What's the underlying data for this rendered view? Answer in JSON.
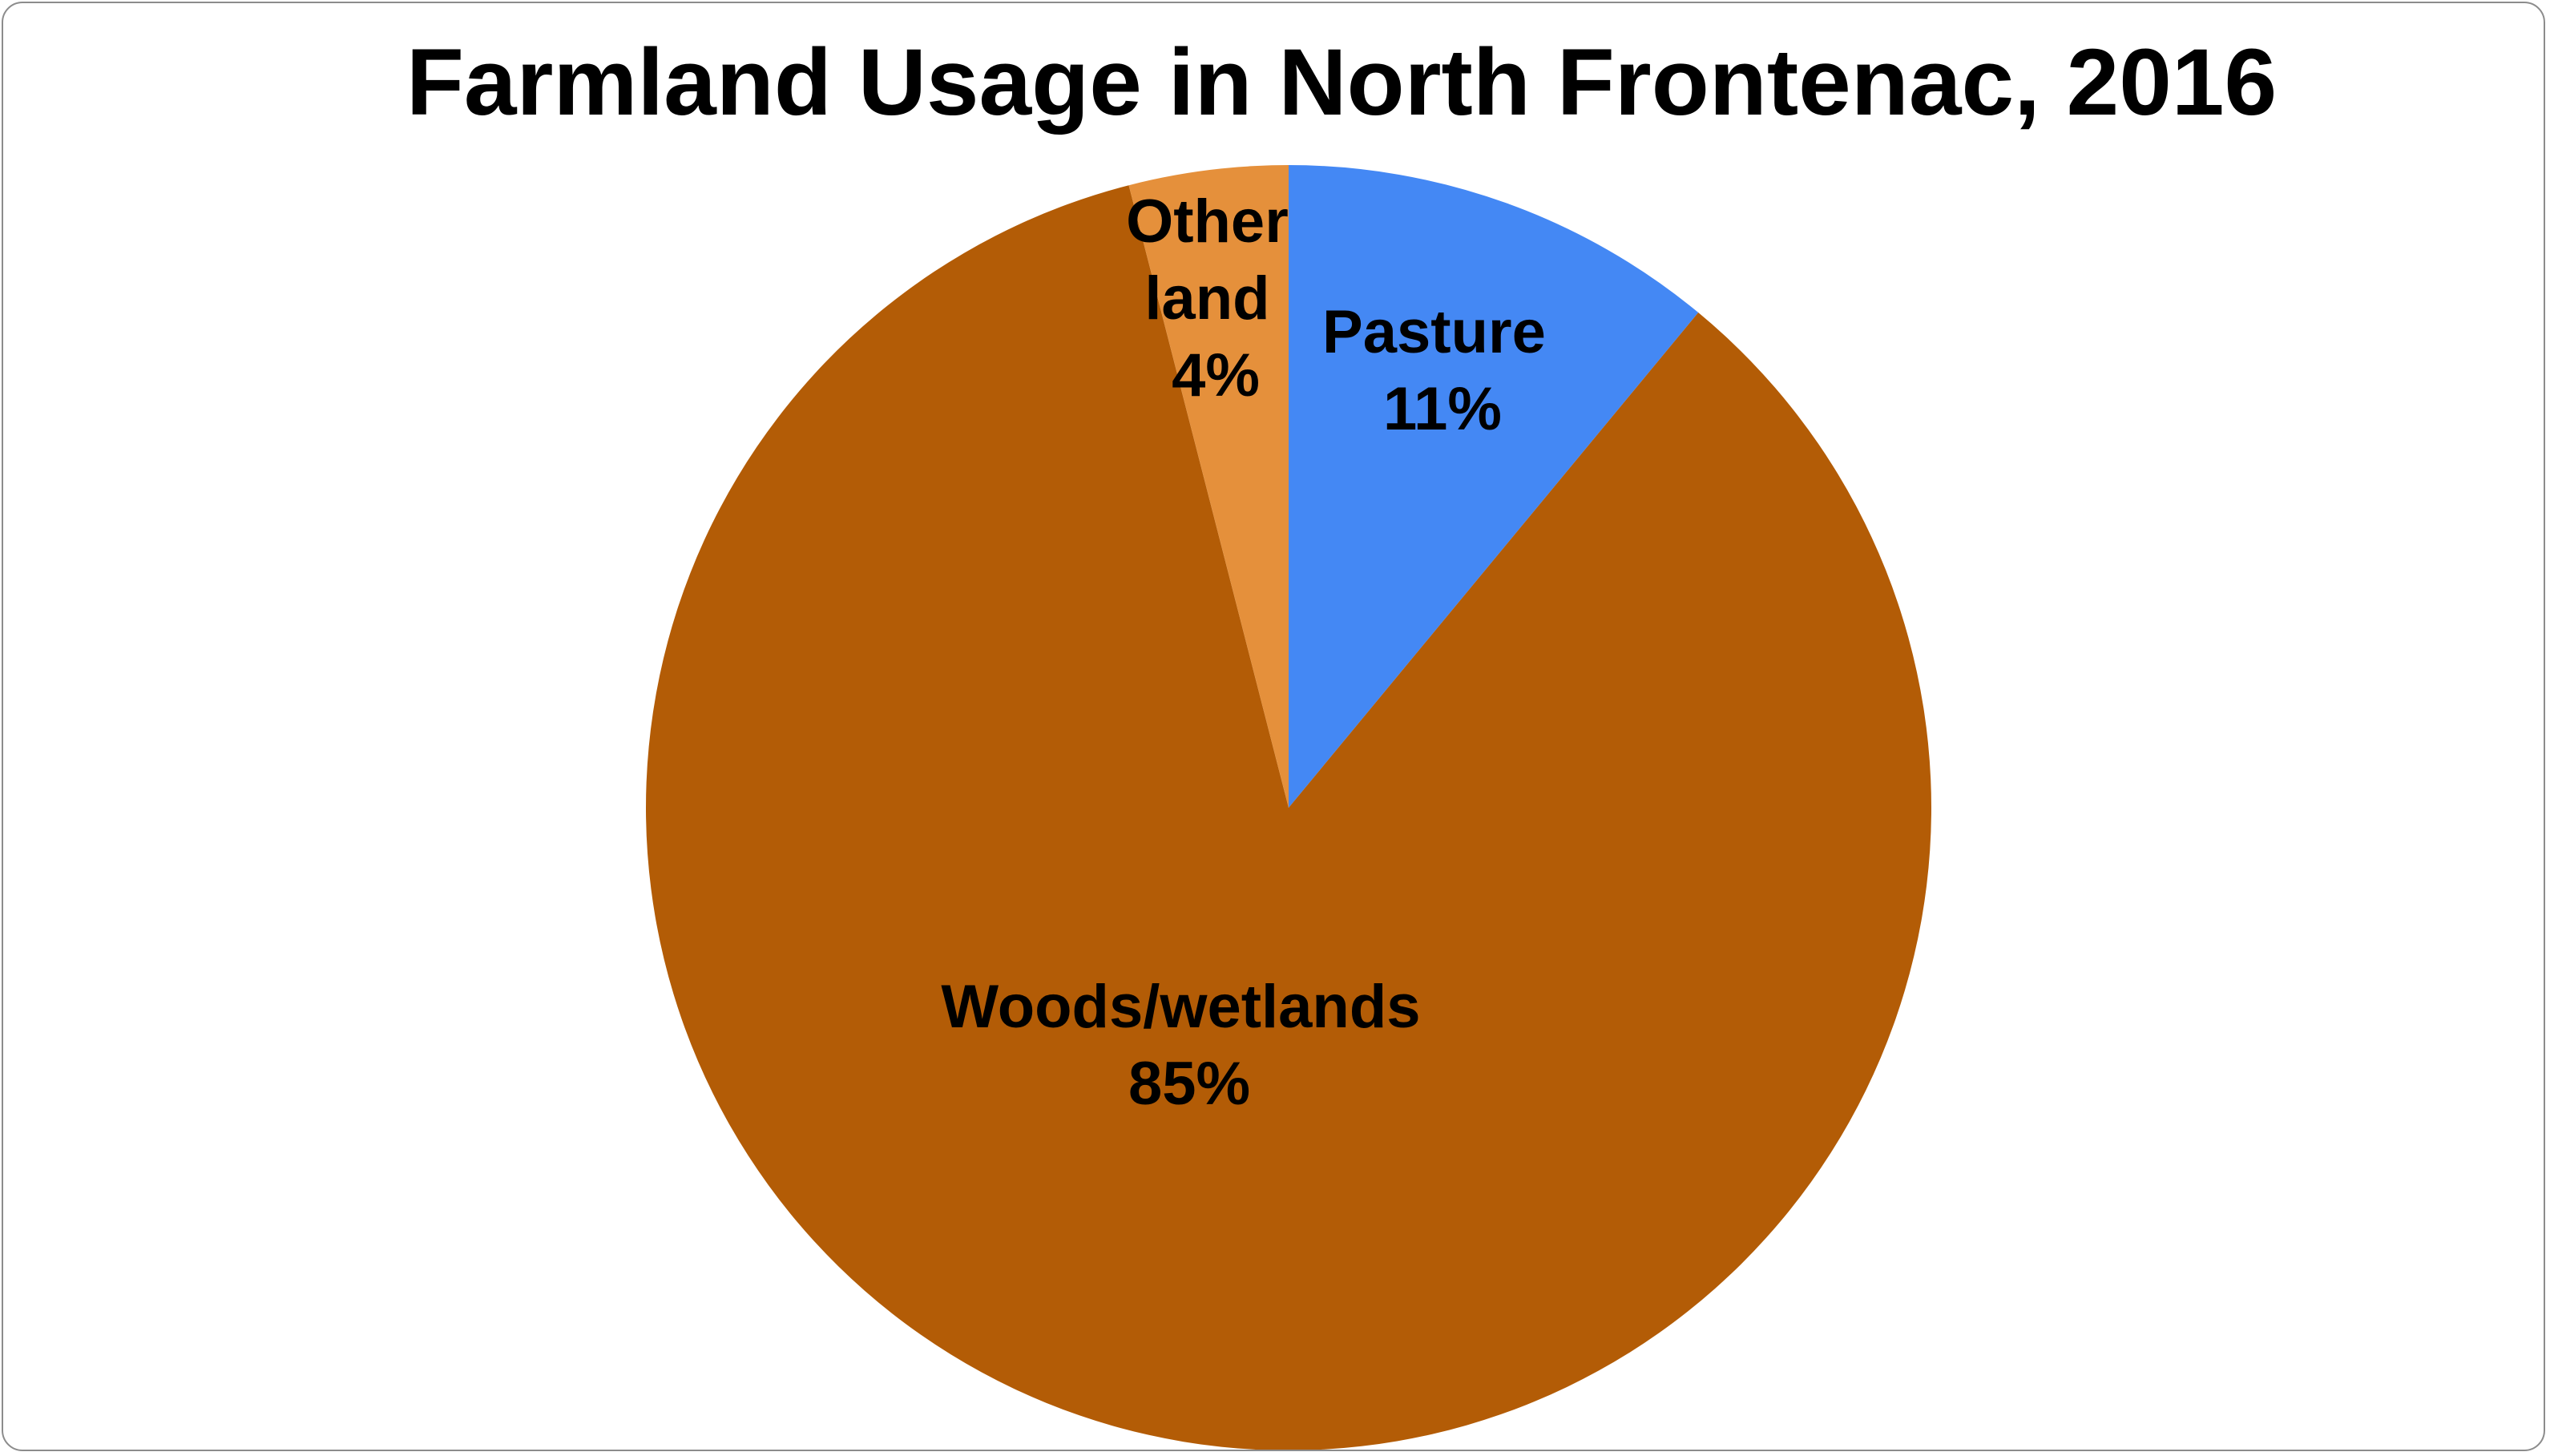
{
  "chart_data": {
    "type": "pie",
    "title": "Farmland Usage in North Frontenac, 2016",
    "slices": [
      {
        "label": "Pasture",
        "value": 11,
        "value_label": "11%",
        "color": "#4488f4"
      },
      {
        "label": "Woods/wetlands",
        "value": 85,
        "value_label": "85%",
        "color": "#b35c06"
      },
      {
        "label": "Other land",
        "label_lines": [
          "Other",
          "land"
        ],
        "value": 4,
        "value_label": "4%",
        "color": "#e5903b"
      }
    ],
    "start": "12 o'clock",
    "direction": "clockwise",
    "legend": "none"
  }
}
